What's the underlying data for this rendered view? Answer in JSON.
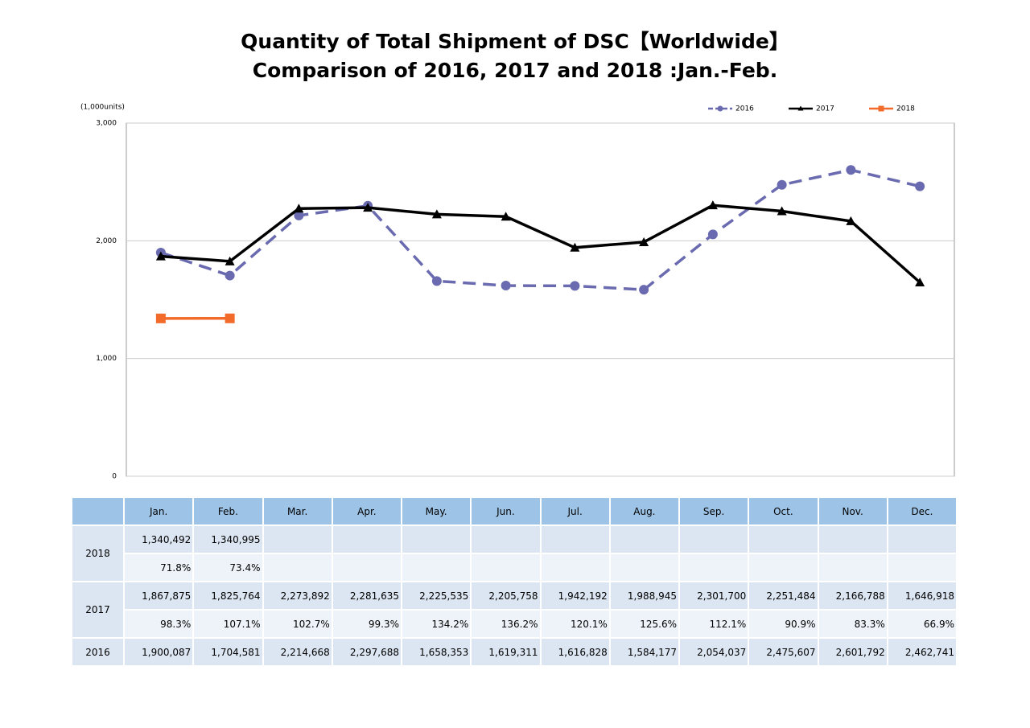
{
  "chart_data": {
    "type": "line",
    "title": "Quantity of Total Shipment of DSC【Worldwide】",
    "subtitle": "Comparison of 2016, 2017 and 2018 :Jan.-Feb.",
    "y_label": "(1,000units)",
    "categories": [
      "Jan.",
      "Feb.",
      "Mar.",
      "Apr.",
      "May.",
      "Jun.",
      "Jul.",
      "Aug.",
      "Sep.",
      "Oct.",
      "Nov.",
      "Dec."
    ],
    "series": [
      {
        "name": "2016",
        "color": "#6a6ab0",
        "dash": true,
        "marker": "circle",
        "values": [
          1900.087,
          1704.581,
          2214.668,
          2297.688,
          1658.353,
          1619.311,
          1616.828,
          1584.177,
          2054.037,
          2475.607,
          2601.792,
          2462.741
        ]
      },
      {
        "name": "2017",
        "color": "#000000",
        "dash": false,
        "marker": "triangle",
        "values": [
          1867.875,
          1825.764,
          2273.892,
          2281.635,
          2225.535,
          2205.758,
          1942.192,
          1988.945,
          2301.7,
          2251.484,
          2166.788,
          1646.918
        ]
      },
      {
        "name": "2018",
        "color": "#f26b2b",
        "dash": false,
        "marker": "square",
        "values": [
          1340.492,
          1340.995,
          null,
          null,
          null,
          null,
          null,
          null,
          null,
          null,
          null,
          null
        ]
      }
    ],
    "ylim": [
      0,
      3000
    ],
    "yticks": [
      0,
      {
        "value": 1000,
        "label": "1,000"
      },
      {
        "value": 2000,
        "label": "2,000"
      },
      {
        "value": 3000,
        "label": "3,000"
      }
    ],
    "grid": true,
    "legend": "top-right"
  },
  "table": {
    "groups": [
      {
        "year": "2018",
        "rows": [
          [
            "1,340,492",
            "1,340,995"
          ],
          [
            "71.8%",
            "73.4%"
          ]
        ]
      },
      {
        "year": "2017",
        "rows": [
          [
            "1,867,875",
            "1,825,764",
            "2,273,892",
            "2,281,635",
            "2,225,535",
            "2,205,758",
            "1,942,192",
            "1,988,945",
            "2,301,700",
            "2,251,484",
            "2,166,788",
            "1,646,918"
          ],
          [
            "98.3%",
            "107.1%",
            "102.7%",
            "99.3%",
            "134.2%",
            "136.2%",
            "120.1%",
            "125.6%",
            "112.1%",
            "90.9%",
            "83.3%",
            "66.9%"
          ]
        ]
      },
      {
        "year": "2016",
        "rows": [
          [
            "1,900,087",
            "1,704,581",
            "2,214,668",
            "2,297,688",
            "1,658,353",
            "1,619,311",
            "1,616,828",
            "1,584,177",
            "2,054,037",
            "2,475,607",
            "2,601,792",
            "2,462,741"
          ]
        ]
      }
    ]
  }
}
